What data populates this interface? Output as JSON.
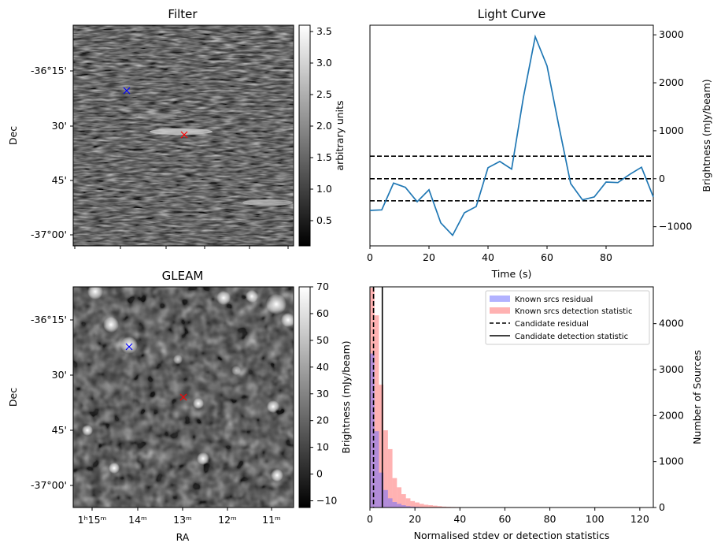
{
  "chart_data": [
    {
      "type": "heatmap",
      "title": "Filter",
      "xlabel": "",
      "ylabel": "Dec",
      "y_tick_labels": [
        "-36°15'",
        "30'",
        "45'",
        "-37°00'"
      ],
      "colorbar": {
        "label": "arbitrary units",
        "ticks": [
          0.5,
          1.0,
          1.5,
          2.0,
          2.5,
          3.0,
          3.5
        ],
        "tick_labels": [
          "0.5",
          "1.0",
          "1.5",
          "2.0",
          "2.5",
          "3.0",
          "3.5"
        ],
        "range": [
          0.1,
          3.6
        ],
        "colormap": "gray"
      },
      "markers": [
        {
          "name": "blue-cross",
          "color": "#0000ff"
        },
        {
          "name": "red-cross",
          "color": "#ff0000"
        }
      ]
    },
    {
      "type": "line",
      "title": "Light Curve",
      "xlabel": "Time (s)",
      "ylabel": "Brightness (mJy/beam)",
      "xlim": [
        0,
        96
      ],
      "ylim": [
        -1400,
        3200
      ],
      "x_ticks": [
        0,
        20,
        40,
        60,
        80
      ],
      "x_tick_labels": [
        "0",
        "20",
        "40",
        "60",
        "80"
      ],
      "y_ticks": [
        -1000,
        0,
        1000,
        2000,
        3000
      ],
      "y_tick_labels": [
        "−1000",
        "0",
        "1000",
        "2000",
        "3000"
      ],
      "y_axis_side": "right",
      "series": [
        {
          "color": "#1f77b4",
          "x": [
            0,
            4,
            8,
            12,
            16,
            20,
            24,
            28,
            32,
            36,
            40,
            44,
            48,
            52,
            56,
            60,
            64,
            68,
            72,
            76,
            80,
            84,
            88,
            92,
            96
          ],
          "y": [
            -660,
            -650,
            -90,
            -180,
            -480,
            -230,
            -920,
            -1180,
            -710,
            -580,
            230,
            360,
            200,
            1700,
            2960,
            2350,
            1100,
            -100,
            -440,
            -380,
            -70,
            -80,
            90,
            240,
            -380
          ]
        }
      ],
      "hlines": [
        {
          "y": 470,
          "style": "dashed",
          "color": "#000000"
        },
        {
          "y": 0,
          "style": "dashed",
          "color": "#000000"
        },
        {
          "y": -460,
          "style": "dashed",
          "color": "#000000"
        }
      ]
    },
    {
      "type": "heatmap",
      "title": "GLEAM",
      "xlabel": "RA",
      "ylabel": "Dec",
      "x_tick_labels": [
        "1ʰ15ᵐ",
        "14ᵐ",
        "13ᵐ",
        "12ᵐ",
        "11ᵐ"
      ],
      "y_tick_labels": [
        "-36°15'",
        "30'",
        "45'",
        "-37°00'"
      ],
      "colorbar": {
        "label": "Brightness (mJy/beam)",
        "ticks": [
          -10,
          0,
          10,
          20,
          30,
          40,
          50,
          60,
          70
        ],
        "tick_labels": [
          "−10",
          "0",
          "10",
          "20",
          "30",
          "40",
          "50",
          "60",
          "70"
        ],
        "range": [
          -12.5,
          70
        ],
        "colormap": "gray"
      },
      "markers": [
        {
          "name": "blue-cross",
          "color": "#0000ff"
        },
        {
          "name": "red-cross",
          "color": "#ff0000"
        }
      ]
    },
    {
      "type": "bar",
      "subtype": "histogram",
      "title": "",
      "xlabel": "Normalised stdev or detection statistics",
      "ylabel": "Number of Sources",
      "xlim": [
        0,
        126
      ],
      "ylim": [
        0,
        4800
      ],
      "x_ticks": [
        0,
        20,
        40,
        60,
        80,
        100,
        120
      ],
      "x_tick_labels": [
        "0",
        "20",
        "40",
        "60",
        "80",
        "100",
        "120"
      ],
      "y_ticks": [
        0,
        1000,
        2000,
        3000,
        4000
      ],
      "y_tick_labels": [
        "0",
        "1000",
        "2000",
        "3000",
        "4000"
      ],
      "y_axis_side": "right",
      "legend_position": "top-right",
      "bin_width": 2,
      "series": [
        {
          "name": "Known srcs residual",
          "color": "#6666ff",
          "bin_starts": [
            0,
            2,
            4,
            6,
            8,
            10,
            12,
            14,
            16,
            18,
            20,
            22,
            24
          ],
          "counts": [
            3350,
            1660,
            760,
            380,
            200,
            120,
            80,
            50,
            30,
            20,
            15,
            10,
            5
          ]
        },
        {
          "name": "Known srcs detection statistic",
          "color": "#ff6666",
          "bin_starts": [
            0,
            2,
            4,
            6,
            8,
            10,
            12,
            14,
            16,
            18,
            20,
            22,
            24,
            26,
            28,
            30,
            32,
            34,
            36,
            38,
            40,
            42,
            44,
            46,
            48,
            50,
            52,
            54,
            56,
            58,
            60,
            62,
            64,
            66,
            68,
            70,
            72,
            74,
            76,
            78,
            80,
            82,
            84,
            86,
            88,
            90,
            92
          ],
          "counts": [
            4780,
            4180,
            2670,
            1680,
            1270,
            640,
            440,
            290,
            200,
            140,
            110,
            80,
            60,
            50,
            40,
            30,
            20,
            15,
            12,
            10,
            8,
            6,
            5,
            4,
            4,
            3,
            3,
            3,
            3,
            2,
            2,
            2,
            2,
            2,
            2,
            2,
            2,
            2,
            2,
            2,
            2,
            2,
            2,
            2,
            2,
            2,
            2
          ]
        }
      ],
      "vlines": [
        {
          "name": "Candidate residual",
          "x": 1.6,
          "style": "dashed",
          "color": "#000000"
        },
        {
          "name": "Candidate detection statistic",
          "x": 5.5,
          "style": "solid",
          "color": "#000000"
        }
      ]
    }
  ]
}
